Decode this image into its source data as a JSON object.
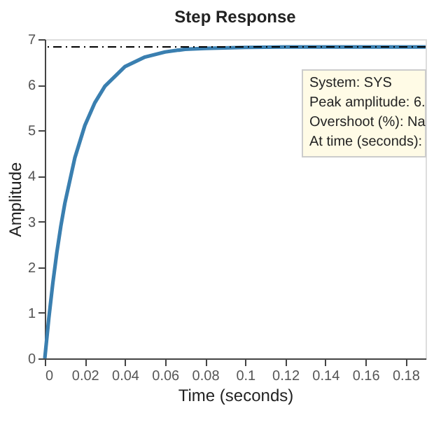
{
  "chart_data": {
    "type": "line",
    "title": "Step Response",
    "xlabel": "Time (seconds)",
    "ylabel": "Amplitude",
    "x": [
      0,
      0.002,
      0.004,
      0.006,
      0.008,
      0.01,
      0.015,
      0.02,
      0.025,
      0.03,
      0.04,
      0.05,
      0.06,
      0.07,
      0.08,
      0.1,
      0.12,
      0.14,
      0.16,
      0.19
    ],
    "series": [
      {
        "color": "#3a7fb0",
        "values": [
          0,
          0.88,
          1.65,
          2.32,
          2.9,
          3.4,
          4.4,
          5.11,
          5.61,
          5.97,
          6.4,
          6.61,
          6.72,
          6.78,
          6.8,
          6.82,
          6.83,
          6.83,
          6.83,
          6.83
        ]
      }
    ],
    "xlim": [
      0,
      0.19
    ],
    "xticks": [
      0,
      0.02,
      0.04,
      0.06,
      0.08,
      0.1,
      0.12,
      0.14,
      0.16,
      0.18
    ],
    "ylim": [
      0,
      7
    ],
    "yticks": [
      0,
      1,
      2,
      3,
      4,
      5,
      6,
      7
    ],
    "ref_lines": [
      {
        "axis": "y",
        "value": 6.83,
        "color": "#000000",
        "line_style": "dashdot"
      }
    ],
    "annotations": [
      "System: SYS",
      "Peak amplitude: 6.",
      "Overshoot (%): Na",
      "At time (seconds):"
    ],
    "grid": false,
    "marker": "none",
    "line_style": "solid"
  }
}
